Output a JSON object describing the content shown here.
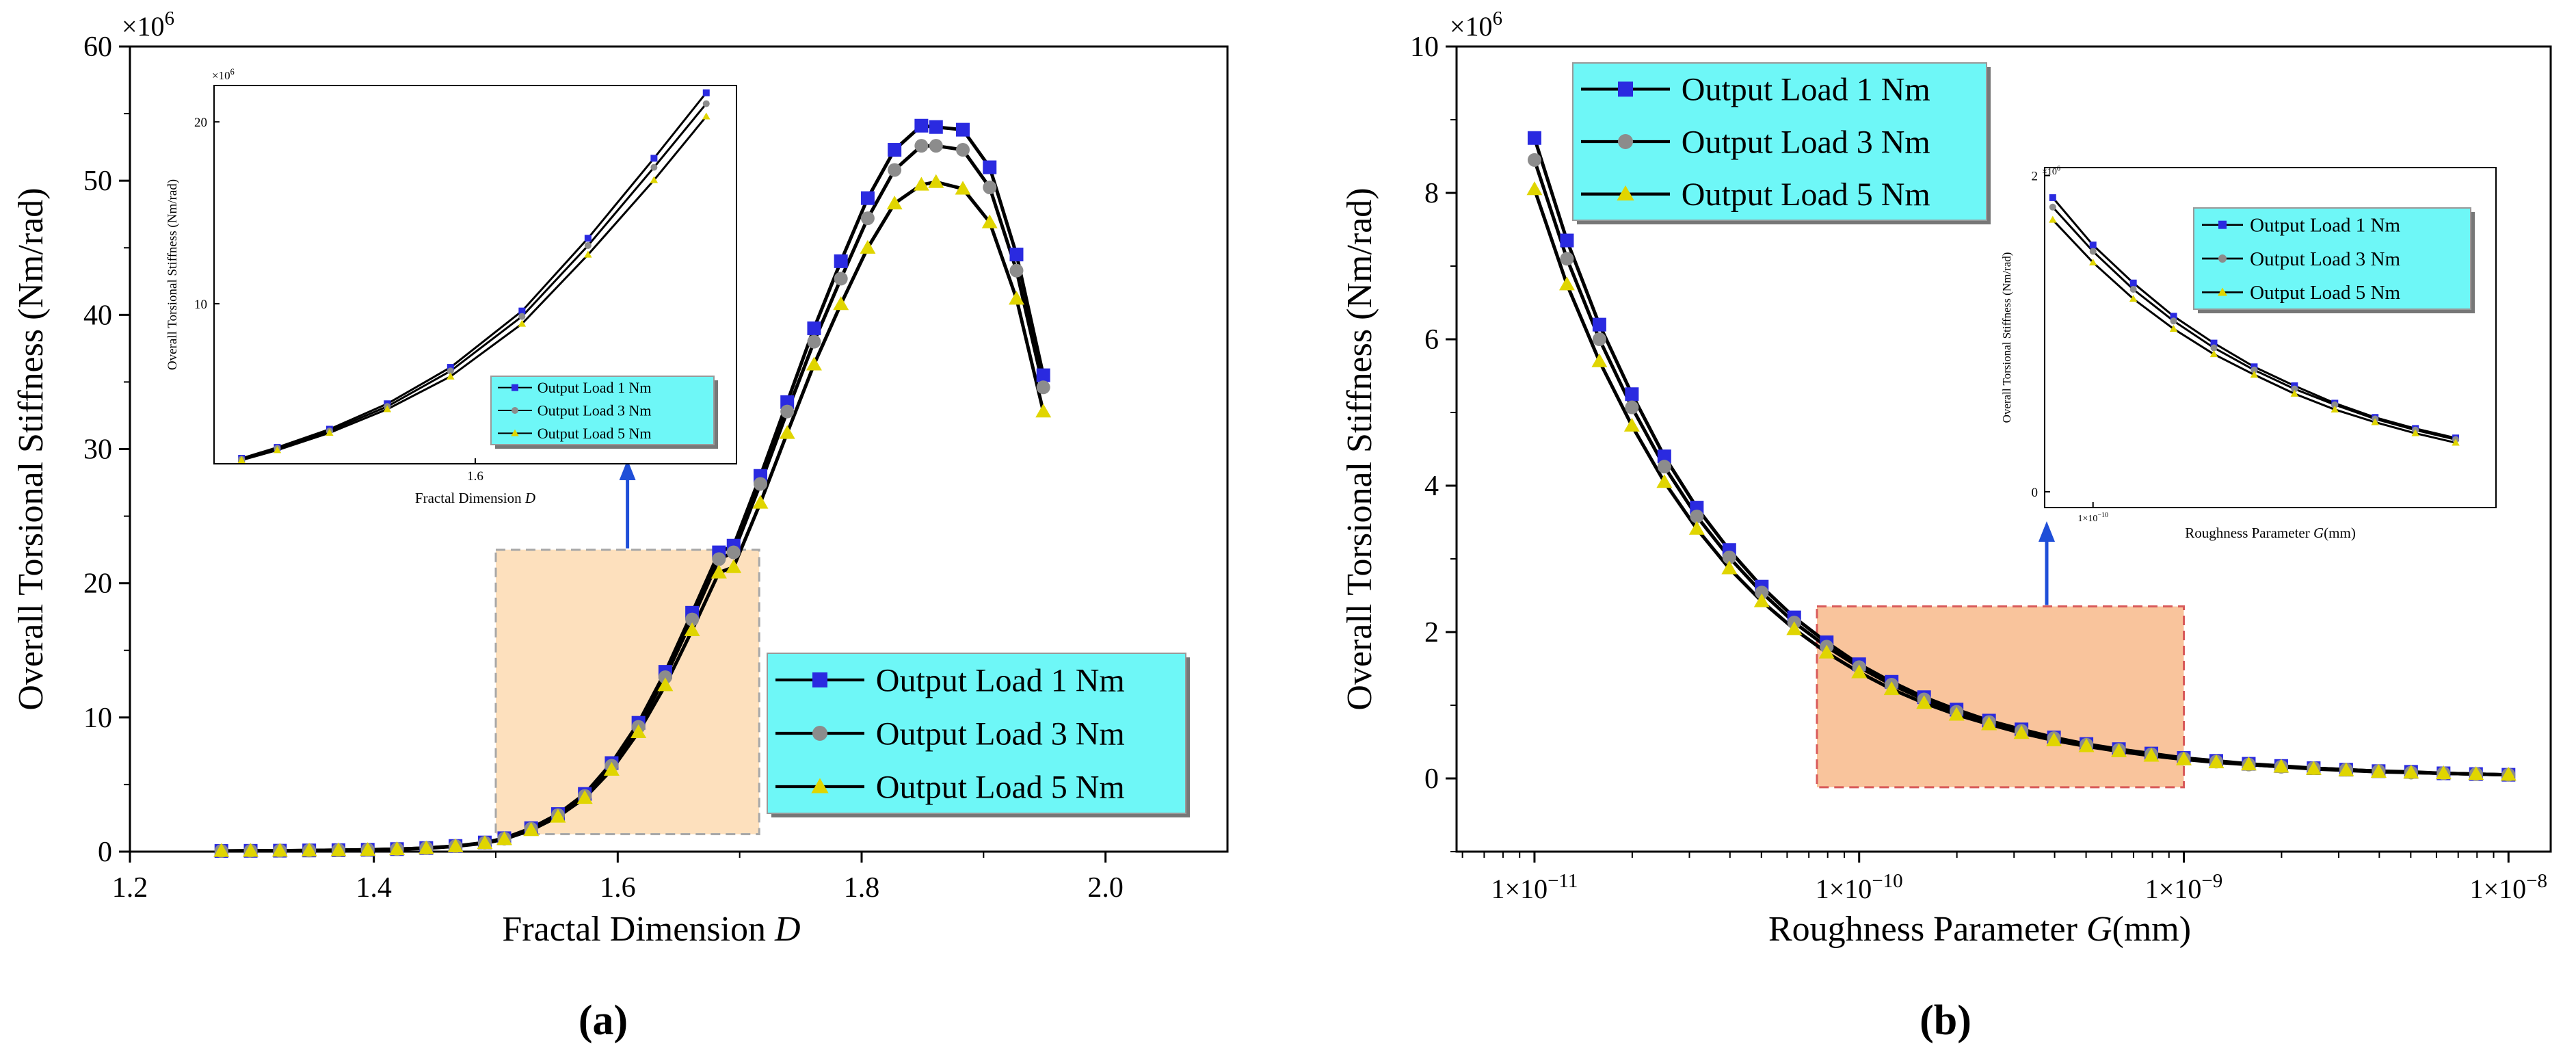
{
  "colors": {
    "series1": "#2a2ae0",
    "series2": "#8c8c8c",
    "series3": "#e0d500",
    "legend_bg": "#6ef7f7",
    "zoom_a_fill": "#fde0bd",
    "zoom_a_stroke": "#a8a8a8",
    "zoom_b_fill": "#f9c49c",
    "zoom_b_stroke": "#d85a5a",
    "arrow": "#1f4fd8"
  },
  "chart_data": [
    {
      "type": "line",
      "panel_label": "(a)",
      "title": "",
      "xlabel": "Fractal Dimension D",
      "xlabel_main": "Fractal Dimension ",
      "xlabel_italic": "D",
      "ylabel": "Overall Torsional Stiffness (Nm/rad)",
      "y_multiplier": "×10",
      "y_multiplier_exp": "6",
      "xlim": [
        1.2,
        2.1
      ],
      "ylim": [
        0,
        60
      ],
      "x_ticks": [
        1.2,
        1.4,
        1.6,
        1.8,
        2.0
      ],
      "x_tick_labels": [
        "1.2",
        "1.4",
        "1.6",
        "1.8",
        "2.0"
      ],
      "y_ticks": [
        0,
        10,
        20,
        30,
        40,
        50,
        60
      ],
      "y_tick_labels": [
        "0",
        "10",
        "20",
        "30",
        "40",
        "50",
        "60"
      ],
      "legend_position": "bottom-right",
      "x": [
        1.275,
        1.299,
        1.323,
        1.347,
        1.371,
        1.395,
        1.419,
        1.443,
        1.467,
        1.491,
        1.507,
        1.529,
        1.551,
        1.573,
        1.595,
        1.617,
        1.639,
        1.661,
        1.683,
        1.695,
        1.717,
        1.739,
        1.761,
        1.783,
        1.805,
        1.827,
        1.849,
        1.861,
        1.883,
        1.905,
        1.927,
        1.949
      ],
      "series": [
        {
          "name": "Output Load 1 Nm",
          "marker": "square",
          "values": [
            0.05,
            0.06,
            0.07,
            0.09,
            0.11,
            0.14,
            0.19,
            0.27,
            0.42,
            0.68,
            1.0,
            1.75,
            2.8,
            4.3,
            6.6,
            9.6,
            13.4,
            17.8,
            22.3,
            22.8,
            28.0,
            33.5,
            39.0,
            44.0,
            48.7,
            52.3,
            54.1,
            54.0,
            53.8,
            51.0,
            44.5,
            35.5
          ]
        },
        {
          "name": "Output Load 3 Nm",
          "marker": "circle",
          "values": [
            0.05,
            0.06,
            0.07,
            0.09,
            0.11,
            0.14,
            0.19,
            0.27,
            0.41,
            0.66,
            0.97,
            1.7,
            2.72,
            4.15,
            6.4,
            9.3,
            13.0,
            17.3,
            21.8,
            22.3,
            27.4,
            32.8,
            38.0,
            42.7,
            47.2,
            50.8,
            52.6,
            52.6,
            52.3,
            49.5,
            43.3,
            34.6
          ]
        },
        {
          "name": "Output Load 5 Nm",
          "marker": "triangle",
          "values": [
            0.05,
            0.06,
            0.07,
            0.08,
            0.1,
            0.13,
            0.18,
            0.25,
            0.39,
            0.63,
            0.93,
            1.6,
            2.6,
            4.0,
            6.1,
            8.9,
            12.4,
            16.5,
            20.8,
            21.2,
            26.0,
            31.2,
            36.3,
            40.8,
            45.0,
            48.3,
            49.7,
            49.9,
            49.4,
            46.9,
            41.2,
            32.8
          ]
        }
      ],
      "zoom_region": {
        "x": [
          1.5,
          1.716
        ],
        "y": [
          1.3,
          22.5
        ]
      },
      "inset": {
        "xlabel": "Fractal Dimension D",
        "xlabel_main": "Fractal Dimension ",
        "xlabel_italic": "D",
        "ylabel": "Overall Torsional Stiffness (Nm/rad)",
        "y_multiplier": "×10",
        "y_multiplier_exp": "6",
        "xlim": [
          1.505,
          1.695
        ],
        "ylim": [
          1.2,
          22.0
        ],
        "x_ticks": [
          1.6
        ],
        "x_tick_labels": [
          "1.6"
        ],
        "y_ticks": [
          10,
          20
        ],
        "y_tick_labels": [
          "10",
          "20"
        ],
        "legend_position": "bottom-right",
        "x": [
          1.515,
          1.528,
          1.547,
          1.568,
          1.591,
          1.617,
          1.641,
          1.665,
          1.684
        ],
        "series": [
          {
            "name": "Output Load 1 Nm",
            "marker": "square",
            "values": [
              1.5,
              2.1,
              3.1,
              4.5,
              6.5,
              9.6,
              13.6,
              18.0,
              21.6
            ]
          },
          {
            "name": "Output Load 3 Nm",
            "marker": "circle",
            "values": [
              1.45,
              2.05,
              3.0,
              4.35,
              6.3,
              9.3,
              13.2,
              17.5,
              21.0
            ]
          },
          {
            "name": "Output Load 5 Nm",
            "marker": "triangle",
            "values": [
              1.4,
              1.95,
              2.9,
              4.2,
              6.0,
              8.9,
              12.7,
              16.8,
              20.3
            ]
          }
        ]
      }
    },
    {
      "type": "line",
      "panel_label": "(b)",
      "title": "",
      "xlabel": "Roughness Parameter G(mm)",
      "xlabel_main": "Roughness Parameter ",
      "xlabel_italic": "G",
      "xlabel_tail": "(mm)",
      "ylabel": "Overall Torsional Stiffness (Nm/rad)",
      "y_multiplier": "×10",
      "y_multiplier_exp": "6",
      "xscale": "log",
      "xlim_exp": [
        -11.24,
        -7.87
      ],
      "ylim": [
        -1,
        10
      ],
      "x_ticks_exp": [
        -11,
        -10,
        -9,
        -8
      ],
      "x_tick_labels": [
        "1×10",
        "1×10",
        "1×10",
        "1×10"
      ],
      "x_tick_exps": [
        "−11",
        "−10",
        "−9",
        "−8"
      ],
      "y_ticks": [
        0,
        2,
        4,
        6,
        8,
        10
      ],
      "y_tick_labels": [
        "0",
        "2",
        "4",
        "6",
        "8",
        "10"
      ],
      "legend_position": "top-left",
      "x_exp": [
        -11.0,
        -10.9,
        -10.8,
        -10.7,
        -10.6,
        -10.5,
        -10.4,
        -10.3,
        -10.2,
        -10.1,
        -10.0,
        -9.9,
        -9.8,
        -9.7,
        -9.6,
        -9.5,
        -9.4,
        -9.3,
        -9.2,
        -9.1,
        -9.0,
        -8.9,
        -8.8,
        -8.7,
        -8.6,
        -8.5,
        -8.4,
        -8.3,
        -8.2,
        -8.1,
        -8.0
      ],
      "series": [
        {
          "name": "Output Load 1 Nm",
          "marker": "square",
          "values": [
            8.75,
            7.35,
            6.2,
            5.25,
            4.4,
            3.7,
            3.12,
            2.62,
            2.2,
            1.86,
            1.56,
            1.32,
            1.11,
            0.94,
            0.79,
            0.67,
            0.56,
            0.47,
            0.4,
            0.34,
            0.28,
            0.24,
            0.2,
            0.17,
            0.14,
            0.12,
            0.1,
            0.09,
            0.07,
            0.06,
            0.05
          ]
        },
        {
          "name": "Output Load 3 Nm",
          "marker": "circle",
          "values": [
            8.45,
            7.1,
            6.0,
            5.07,
            4.26,
            3.58,
            3.02,
            2.54,
            2.13,
            1.8,
            1.52,
            1.28,
            1.08,
            0.91,
            0.77,
            0.65,
            0.55,
            0.46,
            0.39,
            0.33,
            0.27,
            0.23,
            0.19,
            0.16,
            0.14,
            0.12,
            0.1,
            0.08,
            0.07,
            0.06,
            0.05
          ]
        },
        {
          "name": "Output Load 5 Nm",
          "marker": "triangle",
          "values": [
            8.05,
            6.75,
            5.7,
            4.82,
            4.05,
            3.41,
            2.87,
            2.42,
            2.04,
            1.72,
            1.45,
            1.22,
            1.03,
            0.87,
            0.74,
            0.62,
            0.52,
            0.44,
            0.37,
            0.31,
            0.26,
            0.22,
            0.19,
            0.16,
            0.13,
            0.11,
            0.09,
            0.08,
            0.07,
            0.06,
            0.05
          ]
        }
      ],
      "zoom_region": {
        "x_exp": [
          -10.13,
          -9.0
        ],
        "y": [
          -0.12,
          2.35
        ]
      },
      "inset": {
        "xlabel": "Roughness Parameter G(mm)",
        "xlabel_main": "Roughness Parameter ",
        "xlabel_italic": "G",
        "xlabel_tail": "(mm)",
        "ylabel": "Overall Torsional Stiffness (Nm/rad)",
        "y_multiplier": "×10",
        "y_multiplier_exp": "6",
        "xscale": "log",
        "xlim_exp": [
          -10.12,
          -9.0
        ],
        "ylim": [
          -0.1,
          2.05
        ],
        "x_ticks_exp": [
          -10
        ],
        "x_tick_labels": [
          "1×10"
        ],
        "x_tick_exps": [
          "−10"
        ],
        "y_ticks": [
          0,
          2
        ],
        "y_tick_labels": [
          "0",
          "2"
        ],
        "legend_position": "top-right",
        "x_exp": [
          -10.1,
          -10.0,
          -9.9,
          -9.8,
          -9.7,
          -9.6,
          -9.5,
          -9.4,
          -9.3,
          -9.2,
          -9.1
        ],
        "series": [
          {
            "name": "Output Load 1 Nm",
            "marker": "square",
            "values": [
              1.86,
              1.56,
              1.32,
              1.11,
              0.94,
              0.79,
              0.67,
              0.56,
              0.47,
              0.4,
              0.34
            ]
          },
          {
            "name": "Output Load 3 Nm",
            "marker": "circle",
            "values": [
              1.8,
              1.52,
              1.28,
              1.08,
              0.91,
              0.77,
              0.65,
              0.55,
              0.46,
              0.39,
              0.33
            ]
          },
          {
            "name": "Output Load 5 Nm",
            "marker": "triangle",
            "values": [
              1.72,
              1.45,
              1.22,
              1.03,
              0.87,
              0.74,
              0.62,
              0.52,
              0.44,
              0.37,
              0.31
            ]
          }
        ]
      }
    }
  ]
}
